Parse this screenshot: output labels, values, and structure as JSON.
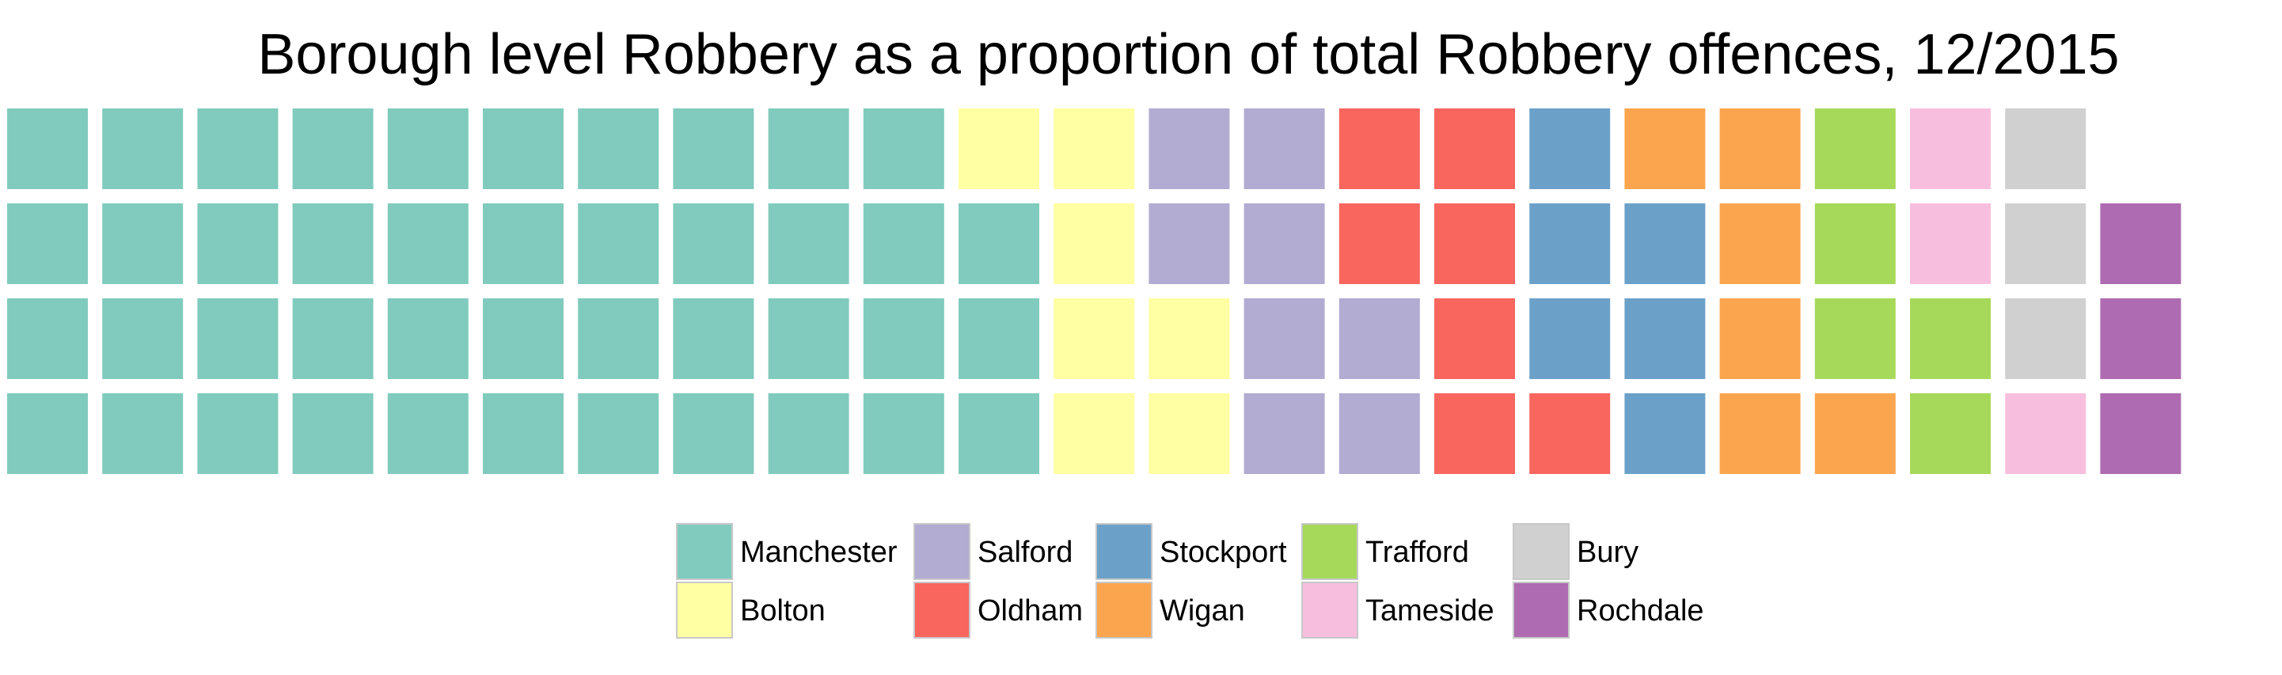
{
  "chart_data": {
    "type": "waffle",
    "title": "Borough level Robbery as a proportion of total Robbery offences, 12/2015",
    "grid_rows": 4,
    "fill_order": "column-major, bottom-up",
    "categories": [
      "Manchester",
      "Bolton",
      "Salford",
      "Oldham",
      "Stockport",
      "Wigan",
      "Trafford",
      "Tameside",
      "Bury",
      "Rochdale"
    ],
    "values": [
      43,
      7,
      8,
      7,
      6,
      6,
      5,
      3,
      3,
      3
    ],
    "colors": [
      "#80cbbd",
      "#ffffa3",
      "#b2abd2",
      "#f8665e",
      "#6ba1c9",
      "#fca54f",
      "#a6d95a",
      "#f8bedd",
      "#d0d0d0",
      "#ae6bb1"
    ],
    "legend": {
      "position": "bottom",
      "columns": 5,
      "entries": [
        {
          "label": "Manchester",
          "color": "#80cbbd"
        },
        {
          "label": "Bolton",
          "color": "#ffffa3"
        },
        {
          "label": "Salford",
          "color": "#b2abd2"
        },
        {
          "label": "Oldham",
          "color": "#f8665e"
        },
        {
          "label": "Stockport",
          "color": "#6ba1c9"
        },
        {
          "label": "Wigan",
          "color": "#fca54f"
        },
        {
          "label": "Trafford",
          "color": "#a6d95a"
        },
        {
          "label": "Tameside",
          "color": "#f8bedd"
        },
        {
          "label": "Bury",
          "color": "#d0d0d0"
        },
        {
          "label": "Rochdale",
          "color": "#ae6bb1"
        }
      ]
    }
  }
}
